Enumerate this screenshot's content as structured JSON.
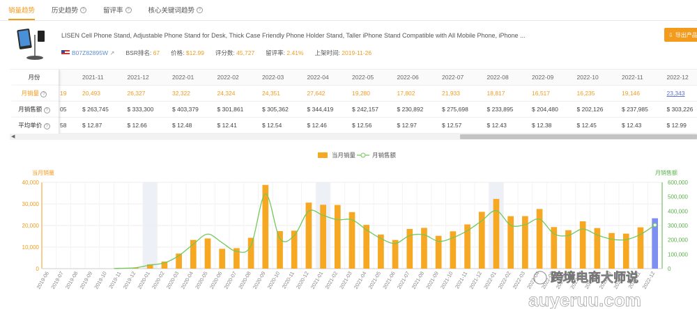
{
  "tabs": [
    {
      "label": "销量趋势",
      "active": true
    },
    {
      "label": "历史趋势",
      "help": "?"
    },
    {
      "label": "留评率",
      "help": "?"
    },
    {
      "label": "核心关键词趋势",
      "help": "?"
    }
  ],
  "product": {
    "title": "LISEN Cell Phone Stand, Adjustable Phone Stand for Desk, Thick Case Friendly Phone Holder Stand, Taller iPhone Stand Compatible with All Mobile Phone, iPhone ...",
    "asin": "B07Z82895W",
    "bsr_label": "BSR排名:",
    "bsr_value": "67",
    "price_label": "价格:",
    "price_value": "$12.99",
    "rating_label": "评分数:",
    "rating_value": "45,727",
    "review_rate_label": "留评率:",
    "review_rate_value": "2.41%",
    "launch_label": "上架时间:",
    "launch_value": "2019-11-26",
    "export_label": "导出产品"
  },
  "table": {
    "row_labels": [
      "月份",
      "月销量",
      "月销售额",
      "平均单价"
    ],
    "partial_first": [
      "",
      "19",
      "05",
      "58"
    ],
    "months": [
      "2021-11",
      "2021-12",
      "2022-01",
      "2022-02",
      "2022-03",
      "2022-04",
      "2022-05",
      "2022-06",
      "2022-07",
      "2022-08",
      "2022-09",
      "2022-10",
      "2022-11",
      "2022-12"
    ],
    "sales": [
      "20,493",
      "26,327",
      "32,322",
      "24,324",
      "24,351",
      "27,642",
      "19,280",
      "17,802",
      "21,933",
      "18,817",
      "16,517",
      "16,235",
      "19,146",
      "23,343"
    ],
    "revenue": [
      "$ 263,745",
      "$ 333,300",
      "$ 403,379",
      "$ 301,861",
      "$ 305,362",
      "$ 344,419",
      "$ 242,157",
      "$ 230,892",
      "$ 275,698",
      "$ 233,895",
      "$ 204,480",
      "$ 202,126",
      "$ 237,985",
      "$ 303,226"
    ],
    "avg_price": [
      "$ 12.87",
      "$ 12.66",
      "$ 12.48",
      "$ 12.41",
      "$ 12.54",
      "$ 12.46",
      "$ 12.56",
      "$ 12.97",
      "$ 12.57",
      "$ 12.43",
      "$ 12.38",
      "$ 12.45",
      "$ 12.43",
      "$ 12.99"
    ]
  },
  "chart_data": {
    "type": "bar",
    "legend": [
      "当月销量",
      "月销售额"
    ],
    "left_axis_title": "当月销量",
    "right_axis_title": "月销售额",
    "left_ylim": [
      0,
      40000
    ],
    "right_ylim": [
      0,
      600000
    ],
    "left_ticks": [
      "0",
      "10,000",
      "20,000",
      "30,000",
      "40,000"
    ],
    "right_ticks": [
      "0",
      "100,000",
      "200,000",
      "300,000",
      "400,000",
      "500,000",
      "600,000"
    ],
    "categories": [
      "2019-06",
      "2019-07",
      "2019-08",
      "2019-09",
      "2019-10",
      "2019-11",
      "2019-12",
      "2020-01",
      "2020-02",
      "2020-03",
      "2020-04",
      "2020-05",
      "2020-06",
      "2020-07",
      "2020-08",
      "2020-09",
      "2020-10",
      "2020-11",
      "2020-12",
      "2021-01",
      "2021-02",
      "2021-03",
      "2021-04",
      "2021-05",
      "2021-06",
      "2021-07",
      "2021-08",
      "2021-09",
      "2021-10",
      "2021-11",
      "2021-12",
      "2022-01",
      "2022-02",
      "2022-03",
      "2022-04",
      "2022-05",
      "2022-06",
      "2022-07",
      "2022-08",
      "2022-09",
      "2022-10",
      "2022-11",
      "2022-12"
    ],
    "series": [
      {
        "name": "当月销量",
        "color": "#f7a823",
        "values": [
          0,
          0,
          0,
          0,
          0,
          200,
          500,
          2000,
          3300,
          7000,
          13300,
          14000,
          9200,
          9500,
          14300,
          38800,
          17400,
          17600,
          30600,
          29600,
          29500,
          26200,
          20300,
          15800,
          13300,
          18400,
          18900,
          15200,
          17300,
          20493,
          26327,
          32322,
          24324,
          24351,
          27642,
          19280,
          17802,
          21933,
          18817,
          16517,
          16235,
          19146,
          23343
        ]
      },
      {
        "name": "月销售额",
        "color": "#72c85a",
        "values": [
          0,
          0,
          0,
          0,
          0,
          2500,
          6000,
          25000,
          40000,
          90000,
          170000,
          240000,
          180000,
          120000,
          160000,
          520000,
          210000,
          230000,
          400000,
          370000,
          340000,
          340000,
          270000,
          210000,
          175000,
          230000,
          235000,
          190000,
          215000,
          263745,
          333300,
          403379,
          301861,
          305362,
          344419,
          242157,
          230892,
          275698,
          233895,
          204480,
          202126,
          237985,
          303226
        ]
      }
    ],
    "highlight_last_color": "#7d8ff0",
    "shaded_columns": [
      "2020-01",
      "2021-01",
      "2022-01"
    ]
  },
  "watermark": {
    "text": "跨境电商大师说",
    "url": "auyeruu.com"
  }
}
